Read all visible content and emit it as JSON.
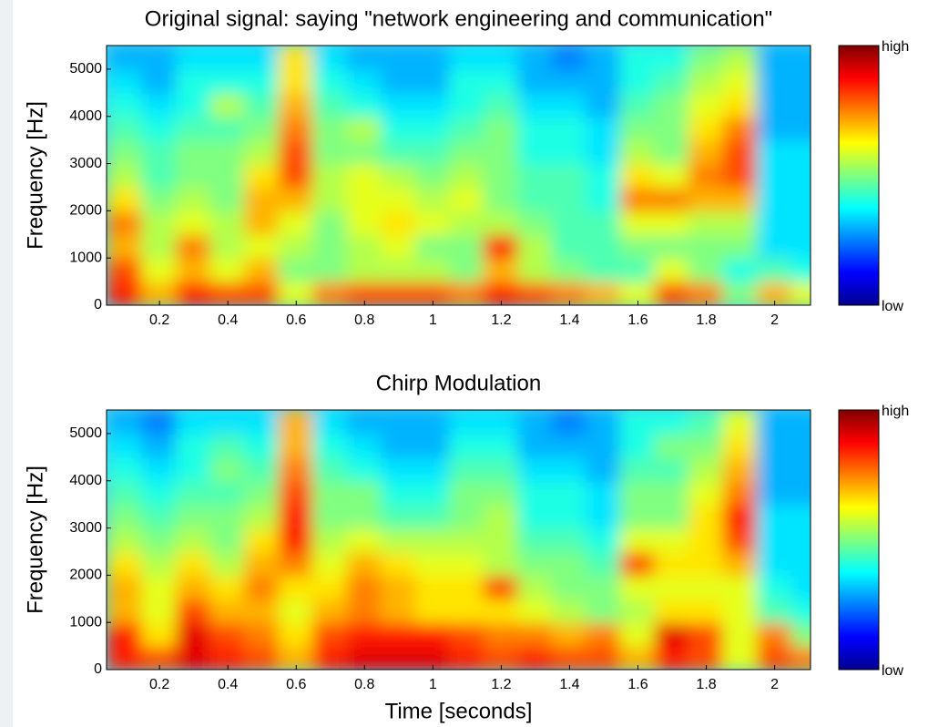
{
  "chart_data": [
    {
      "type": "heatmap",
      "title": "Original signal: saying \"network engineering and communication\"",
      "ylabel": "Frequency [Hz]",
      "x": [
        0.1,
        0.2,
        0.3,
        0.4,
        0.5,
        0.6,
        0.7,
        0.8,
        0.9,
        1.0,
        1.1,
        1.2,
        1.3,
        1.4,
        1.5,
        1.6,
        1.7,
        1.8,
        1.9,
        2.0,
        2.1
      ],
      "y": [
        250,
        750,
        1250,
        1750,
        2250,
        2750,
        3250,
        3750,
        4250,
        4750,
        5250
      ],
      "values": [
        [
          0.85,
          0.7,
          0.85,
          0.8,
          0.8,
          0.6,
          0.75,
          0.8,
          0.8,
          0.8,
          0.75,
          0.85,
          0.8,
          0.75,
          0.7,
          0.6,
          0.8,
          0.75,
          0.5,
          0.7,
          0.6
        ],
        [
          0.8,
          0.6,
          0.7,
          0.6,
          0.7,
          0.5,
          0.5,
          0.55,
          0.55,
          0.55,
          0.5,
          0.7,
          0.55,
          0.5,
          0.45,
          0.45,
          0.6,
          0.5,
          0.4,
          0.45,
          0.4
        ],
        [
          0.7,
          0.55,
          0.75,
          0.55,
          0.6,
          0.55,
          0.5,
          0.55,
          0.6,
          0.5,
          0.5,
          0.85,
          0.55,
          0.45,
          0.45,
          0.5,
          0.5,
          0.5,
          0.5,
          0.35,
          0.35
        ],
        [
          0.75,
          0.55,
          0.6,
          0.55,
          0.7,
          0.6,
          0.5,
          0.6,
          0.65,
          0.6,
          0.55,
          0.55,
          0.5,
          0.45,
          0.45,
          0.6,
          0.6,
          0.55,
          0.55,
          0.35,
          0.35
        ],
        [
          0.65,
          0.5,
          0.55,
          0.5,
          0.7,
          0.7,
          0.55,
          0.6,
          0.6,
          0.55,
          0.6,
          0.5,
          0.45,
          0.45,
          0.4,
          0.75,
          0.75,
          0.7,
          0.7,
          0.35,
          0.35
        ],
        [
          0.55,
          0.45,
          0.5,
          0.5,
          0.65,
          0.8,
          0.55,
          0.6,
          0.55,
          0.5,
          0.55,
          0.5,
          0.45,
          0.45,
          0.4,
          0.65,
          0.6,
          0.75,
          0.8,
          0.35,
          0.35
        ],
        [
          0.5,
          0.45,
          0.5,
          0.5,
          0.55,
          0.8,
          0.5,
          0.5,
          0.45,
          0.45,
          0.5,
          0.5,
          0.4,
          0.4,
          0.35,
          0.55,
          0.5,
          0.7,
          0.8,
          0.35,
          0.35
        ],
        [
          0.45,
          0.4,
          0.45,
          0.45,
          0.5,
          0.75,
          0.5,
          0.55,
          0.4,
          0.4,
          0.45,
          0.5,
          0.4,
          0.4,
          0.35,
          0.5,
          0.5,
          0.65,
          0.75,
          0.3,
          0.3
        ],
        [
          0.4,
          0.35,
          0.4,
          0.55,
          0.45,
          0.7,
          0.45,
          0.4,
          0.35,
          0.35,
          0.4,
          0.45,
          0.35,
          0.35,
          0.3,
          0.45,
          0.5,
          0.6,
          0.65,
          0.3,
          0.3
        ],
        [
          0.35,
          0.3,
          0.4,
          0.4,
          0.4,
          0.65,
          0.4,
          0.35,
          0.3,
          0.3,
          0.4,
          0.4,
          0.3,
          0.3,
          0.3,
          0.4,
          0.45,
          0.55,
          0.6,
          0.3,
          0.3
        ],
        [
          0.3,
          0.3,
          0.35,
          0.35,
          0.35,
          0.65,
          0.35,
          0.3,
          0.3,
          0.3,
          0.35,
          0.35,
          0.3,
          0.25,
          0.3,
          0.4,
          0.4,
          0.5,
          0.55,
          0.3,
          0.3
        ]
      ],
      "xlim": [
        0.045,
        2.105
      ],
      "ylim": [
        0,
        5500
      ],
      "xticks": [
        0.2,
        0.4,
        0.6,
        0.8,
        1,
        1.2,
        1.4,
        1.6,
        1.8,
        2
      ],
      "yticks": [
        0,
        1000,
        2000,
        3000,
        4000,
        5000
      ],
      "colorbar_labels": [
        "high",
        "low"
      ]
    },
    {
      "type": "heatmap",
      "title": "Chirp Modulation",
      "xlabel": "Time [seconds]",
      "ylabel": "Frequency [Hz]",
      "x": [
        0.1,
        0.2,
        0.3,
        0.4,
        0.5,
        0.6,
        0.7,
        0.8,
        0.9,
        1.0,
        1.1,
        1.2,
        1.3,
        1.4,
        1.5,
        1.6,
        1.7,
        1.8,
        1.9,
        2.0,
        2.1
      ],
      "y": [
        250,
        750,
        1250,
        1750,
        2250,
        2750,
        3250,
        3750,
        4250,
        4750,
        5250
      ],
      "values": [
        [
          0.85,
          0.8,
          0.9,
          0.85,
          0.8,
          0.7,
          0.85,
          0.9,
          0.9,
          0.9,
          0.85,
          0.8,
          0.85,
          0.8,
          0.8,
          0.7,
          0.85,
          0.8,
          0.6,
          0.8,
          0.75
        ],
        [
          0.85,
          0.65,
          0.9,
          0.8,
          0.75,
          0.65,
          0.8,
          0.85,
          0.85,
          0.85,
          0.8,
          0.75,
          0.75,
          0.7,
          0.75,
          0.6,
          0.9,
          0.8,
          0.6,
          0.75,
          0.5
        ],
        [
          0.7,
          0.6,
          0.8,
          0.7,
          0.7,
          0.6,
          0.7,
          0.75,
          0.7,
          0.65,
          0.65,
          0.65,
          0.6,
          0.55,
          0.5,
          0.55,
          0.65,
          0.65,
          0.6,
          0.45,
          0.4
        ],
        [
          0.7,
          0.6,
          0.7,
          0.65,
          0.75,
          0.65,
          0.65,
          0.75,
          0.7,
          0.65,
          0.65,
          0.8,
          0.55,
          0.5,
          0.5,
          0.6,
          0.6,
          0.6,
          0.6,
          0.4,
          0.35
        ],
        [
          0.65,
          0.55,
          0.65,
          0.55,
          0.7,
          0.75,
          0.6,
          0.7,
          0.65,
          0.6,
          0.6,
          0.55,
          0.5,
          0.5,
          0.45,
          0.8,
          0.65,
          0.65,
          0.7,
          0.35,
          0.35
        ],
        [
          0.55,
          0.5,
          0.55,
          0.5,
          0.65,
          0.85,
          0.55,
          0.6,
          0.55,
          0.55,
          0.55,
          0.55,
          0.45,
          0.45,
          0.4,
          0.6,
          0.6,
          0.65,
          0.8,
          0.35,
          0.35
        ],
        [
          0.5,
          0.45,
          0.5,
          0.5,
          0.55,
          0.85,
          0.5,
          0.5,
          0.45,
          0.45,
          0.5,
          0.55,
          0.4,
          0.4,
          0.35,
          0.5,
          0.5,
          0.65,
          0.85,
          0.35,
          0.35
        ],
        [
          0.45,
          0.4,
          0.45,
          0.45,
          0.5,
          0.8,
          0.5,
          0.5,
          0.4,
          0.4,
          0.5,
          0.5,
          0.4,
          0.4,
          0.35,
          0.5,
          0.5,
          0.6,
          0.75,
          0.3,
          0.3
        ],
        [
          0.4,
          0.35,
          0.4,
          0.5,
          0.45,
          0.75,
          0.45,
          0.4,
          0.35,
          0.35,
          0.45,
          0.45,
          0.35,
          0.35,
          0.3,
          0.45,
          0.45,
          0.55,
          0.7,
          0.3,
          0.3
        ],
        [
          0.35,
          0.3,
          0.4,
          0.45,
          0.4,
          0.7,
          0.4,
          0.35,
          0.3,
          0.3,
          0.4,
          0.4,
          0.3,
          0.3,
          0.3,
          0.4,
          0.5,
          0.5,
          0.65,
          0.3,
          0.3
        ],
        [
          0.3,
          0.25,
          0.35,
          0.35,
          0.35,
          0.7,
          0.35,
          0.3,
          0.3,
          0.3,
          0.35,
          0.35,
          0.3,
          0.25,
          0.3,
          0.4,
          0.4,
          0.45,
          0.6,
          0.3,
          0.3
        ]
      ],
      "xlim": [
        0.045,
        2.105
      ],
      "ylim": [
        0,
        5500
      ],
      "xticks": [
        0.2,
        0.4,
        0.6,
        0.8,
        1,
        1.2,
        1.4,
        1.6,
        1.8,
        2
      ],
      "yticks": [
        0,
        1000,
        2000,
        3000,
        4000,
        5000
      ],
      "colorbar_labels": [
        "high",
        "low"
      ]
    }
  ]
}
